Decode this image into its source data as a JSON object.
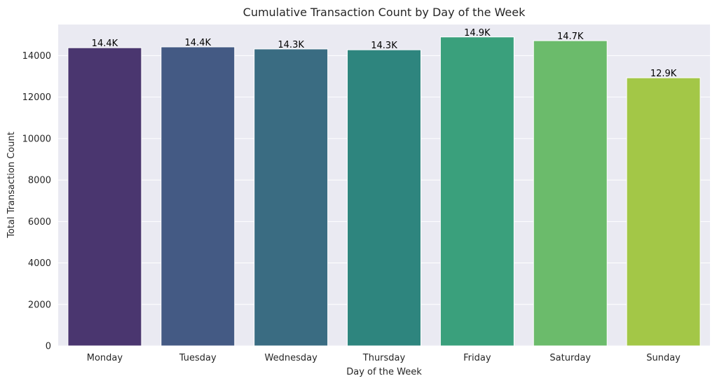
{
  "chart_data": {
    "type": "bar",
    "title": "Cumulative Transaction Count by Day of the Week",
    "xlabel": "Day of the Week",
    "ylabel": "Total Transaction Count",
    "categories": [
      "Monday",
      "Tuesday",
      "Wednesday",
      "Thursday",
      "Friday",
      "Saturday",
      "Sunday"
    ],
    "values": [
      14380,
      14420,
      14320,
      14280,
      14900,
      14720,
      12930
    ],
    "data_labels": [
      "14.4K",
      "14.4K",
      "14.3K",
      "14.3K",
      "14.9K",
      "14.7K",
      "12.9K"
    ],
    "colors": [
      "#4a366f",
      "#445a84",
      "#3a6c82",
      "#2e857e",
      "#3aa07c",
      "#6bbb6b",
      "#a3c747"
    ],
    "ylim": [
      0,
      15500
    ],
    "yticks": [
      0,
      2000,
      4000,
      6000,
      8000,
      10000,
      12000,
      14000
    ],
    "ytick_labels": [
      "0",
      "2000",
      "4000",
      "6000",
      "8000",
      "10000",
      "12000",
      "14000"
    ],
    "grid": true,
    "background_color": "#eaeaf2",
    "grid_color": "#ffffff"
  }
}
